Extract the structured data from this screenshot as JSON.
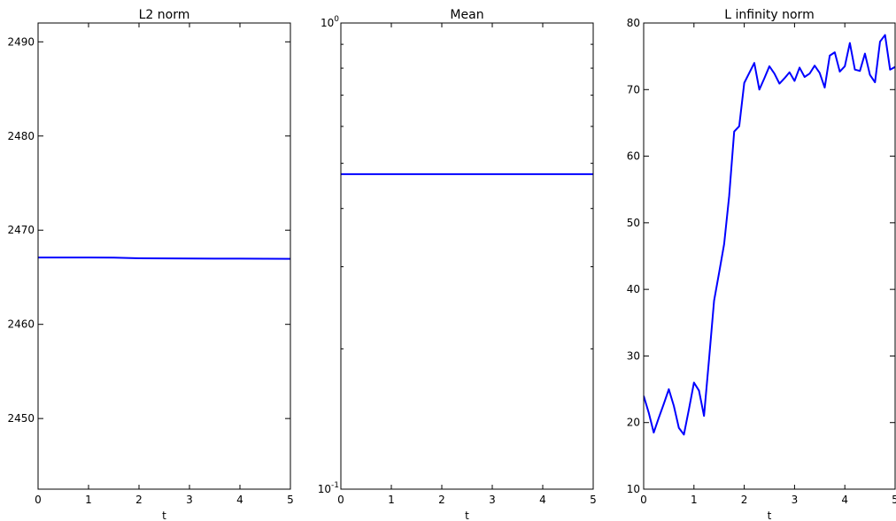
{
  "chart_data": [
    {
      "type": "line",
      "title": "L2 norm",
      "xlabel": "t",
      "ylabel": "",
      "xlim": [
        0,
        5
      ],
      "ylim": [
        2442.5,
        2492
      ],
      "yscale": "linear",
      "grid": false,
      "xticks": [
        0,
        1,
        2,
        3,
        4,
        5
      ],
      "yticks": [
        2450,
        2460,
        2470,
        2480,
        2490
      ],
      "series": [
        {
          "color": "#0000ff",
          "x": [
            0,
            0.5,
            1,
            1.5,
            2,
            2.5,
            3,
            3.5,
            4,
            4.5,
            5
          ],
          "y": [
            2467.1,
            2467.1,
            2467.1,
            2467.08,
            2467.02,
            2467.0,
            2466.99,
            2466.98,
            2466.98,
            2466.97,
            2466.96
          ]
        }
      ]
    },
    {
      "type": "line",
      "title": "Mean",
      "xlabel": "t",
      "ylabel": "",
      "xlim": [
        0,
        5
      ],
      "ylim": [
        0.1,
        1.0
      ],
      "yscale": "log",
      "grid": false,
      "xticks": [
        0,
        1,
        2,
        3,
        4,
        5
      ],
      "yticks": [
        {
          "value": 0.1,
          "label": "10",
          "exp": "-1"
        },
        {
          "value": 1.0,
          "label": "10",
          "exp": "0"
        }
      ],
      "minor_yticks": [
        0.2,
        0.3,
        0.4,
        0.5,
        0.6,
        0.7,
        0.8,
        0.9
      ],
      "series": [
        {
          "color": "#0000ff",
          "x": [
            0,
            5
          ],
          "y": [
            0.474,
            0.474
          ]
        }
      ]
    },
    {
      "type": "line",
      "title": "L infinity norm",
      "xlabel": "t",
      "ylabel": "",
      "xlim": [
        0,
        5
      ],
      "ylim": [
        10,
        80
      ],
      "yscale": "linear",
      "grid": false,
      "xticks": [
        0,
        1,
        2,
        3,
        4,
        5
      ],
      "yticks": [
        10,
        20,
        30,
        40,
        50,
        60,
        70,
        80
      ],
      "series": [
        {
          "color": "#0000ff",
          "x": [
            0,
            0.1,
            0.2,
            0.3,
            0.4,
            0.5,
            0.6,
            0.7,
            0.8,
            0.9,
            1.0,
            1.1,
            1.2,
            1.3,
            1.4,
            1.5,
            1.6,
            1.7,
            1.8,
            1.9,
            2.0,
            2.1,
            2.2,
            2.3,
            2.4,
            2.5,
            2.6,
            2.7,
            2.8,
            2.9,
            3.0,
            3.1,
            3.2,
            3.3,
            3.4,
            3.5,
            3.6,
            3.7,
            3.8,
            3.9,
            4.0,
            4.1,
            4.2,
            4.3,
            4.4,
            4.5,
            4.6,
            4.7,
            4.8,
            4.9,
            5.0
          ],
          "y": [
            24.0,
            21.5,
            18.5,
            20.7,
            22.8,
            25.0,
            22.5,
            19.2,
            18.2,
            22.0,
            26.0,
            24.8,
            21.0,
            29.5,
            38.3,
            42.5,
            46.8,
            54.0,
            63.7,
            64.5,
            71.0,
            72.5,
            74.0,
            70.0,
            71.7,
            73.5,
            72.4,
            70.9,
            71.7,
            72.6,
            71.3,
            73.3,
            71.9,
            72.4,
            73.6,
            72.5,
            70.3,
            75.1,
            75.6,
            72.7,
            73.5,
            77.0,
            73.0,
            72.8,
            75.4,
            72.2,
            71.1,
            77.2,
            78.2,
            73.0,
            73.4
          ]
        }
      ]
    }
  ]
}
